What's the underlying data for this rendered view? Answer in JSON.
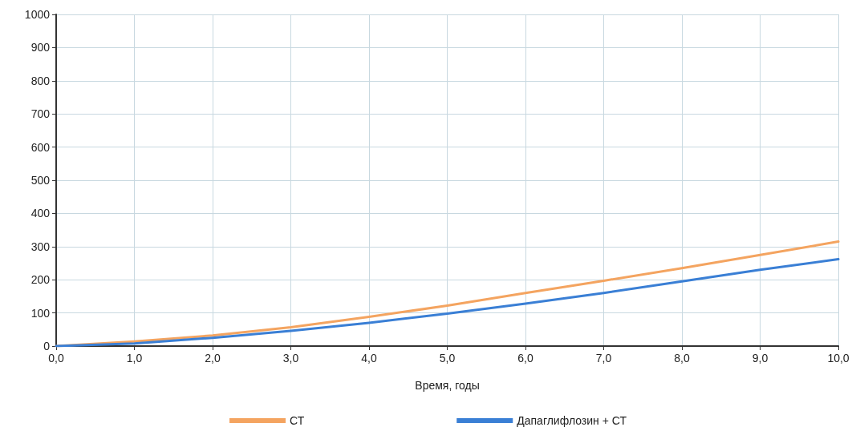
{
  "chart_data": {
    "type": "line",
    "xlabel": "Время, годы",
    "x": [
      0,
      1,
      2,
      3,
      4,
      5,
      6,
      7,
      8,
      9,
      10
    ],
    "series": [
      {
        "name": "СТ",
        "color": "#f4a460",
        "values": [
          0,
          14,
          32,
          57,
          88,
          122,
          160,
          197,
          235,
          275,
          315
        ]
      },
      {
        "name": "Дапаглифлозин + СТ",
        "color": "#3a7fd5",
        "values": [
          0,
          8,
          25,
          46,
          70,
          98,
          128,
          160,
          195,
          230,
          262
        ]
      }
    ],
    "xlim": [
      0,
      10
    ],
    "xticks": [
      {
        "value": 0,
        "label": "0,0"
      },
      {
        "value": 1,
        "label": "1,0"
      },
      {
        "value": 2,
        "label": "2,0"
      },
      {
        "value": 3,
        "label": "3,0"
      },
      {
        "value": 4,
        "label": "4,0"
      },
      {
        "value": 5,
        "label": "5,0"
      },
      {
        "value": 6,
        "label": "6,0"
      },
      {
        "value": 7,
        "label": "7,0"
      },
      {
        "value": 8,
        "label": "8,0"
      },
      {
        "value": 9,
        "label": "9,0"
      },
      {
        "value": 10,
        "label": "10,0"
      }
    ],
    "ylim": [
      0,
      1000
    ],
    "yticks": [
      0,
      100,
      200,
      300,
      400,
      500,
      600,
      700,
      800,
      900,
      1000
    ],
    "grid": true,
    "legend": "bottom",
    "marker": "none",
    "line_style": "solid"
  }
}
